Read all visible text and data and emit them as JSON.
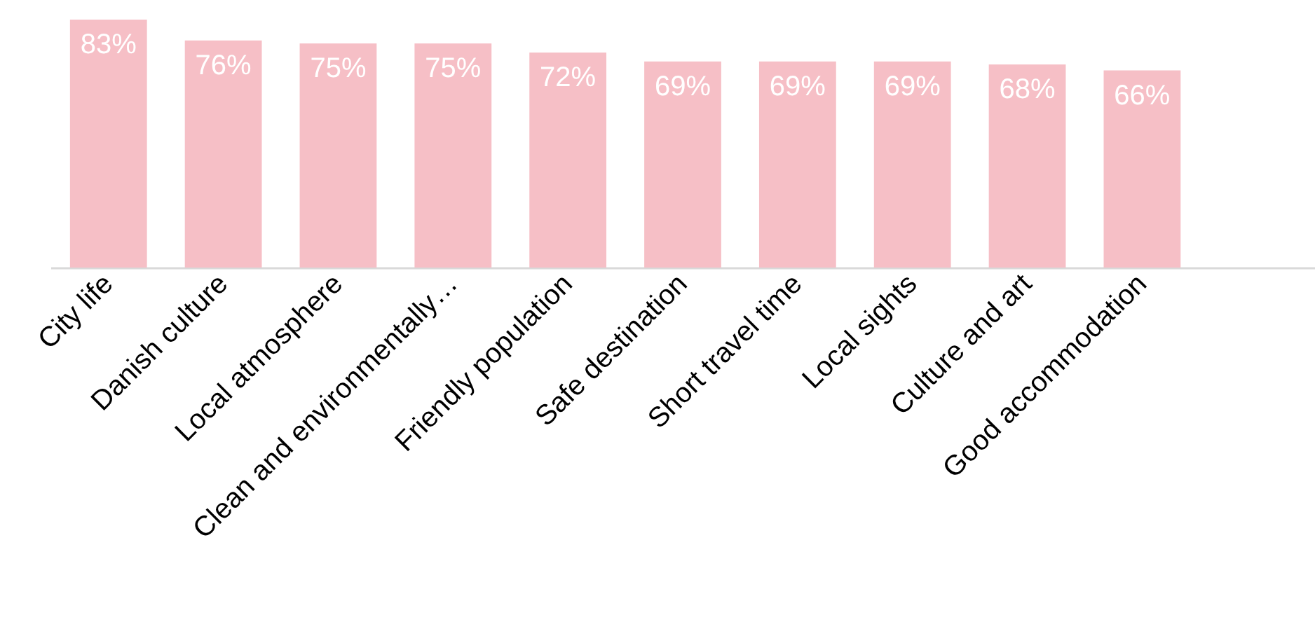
{
  "chart_data": {
    "type": "bar",
    "categories": [
      "City life",
      "Danish culture",
      "Local atmosphere",
      "Clean and environmentally…",
      "Friendly population",
      "Safe destination",
      "Short travel time",
      "Local sights",
      "Culture and art",
      "Good accommodation",
      null
    ],
    "values": [
      83,
      76,
      75,
      75,
      72,
      69,
      69,
      69,
      68,
      66,
      null
    ],
    "value_labels": [
      "83%",
      "76%",
      "75%",
      "75%",
      "72%",
      "69%",
      "69%",
      "69%",
      "68%",
      "66%",
      null
    ],
    "color": "#f6bfc6"
  }
}
